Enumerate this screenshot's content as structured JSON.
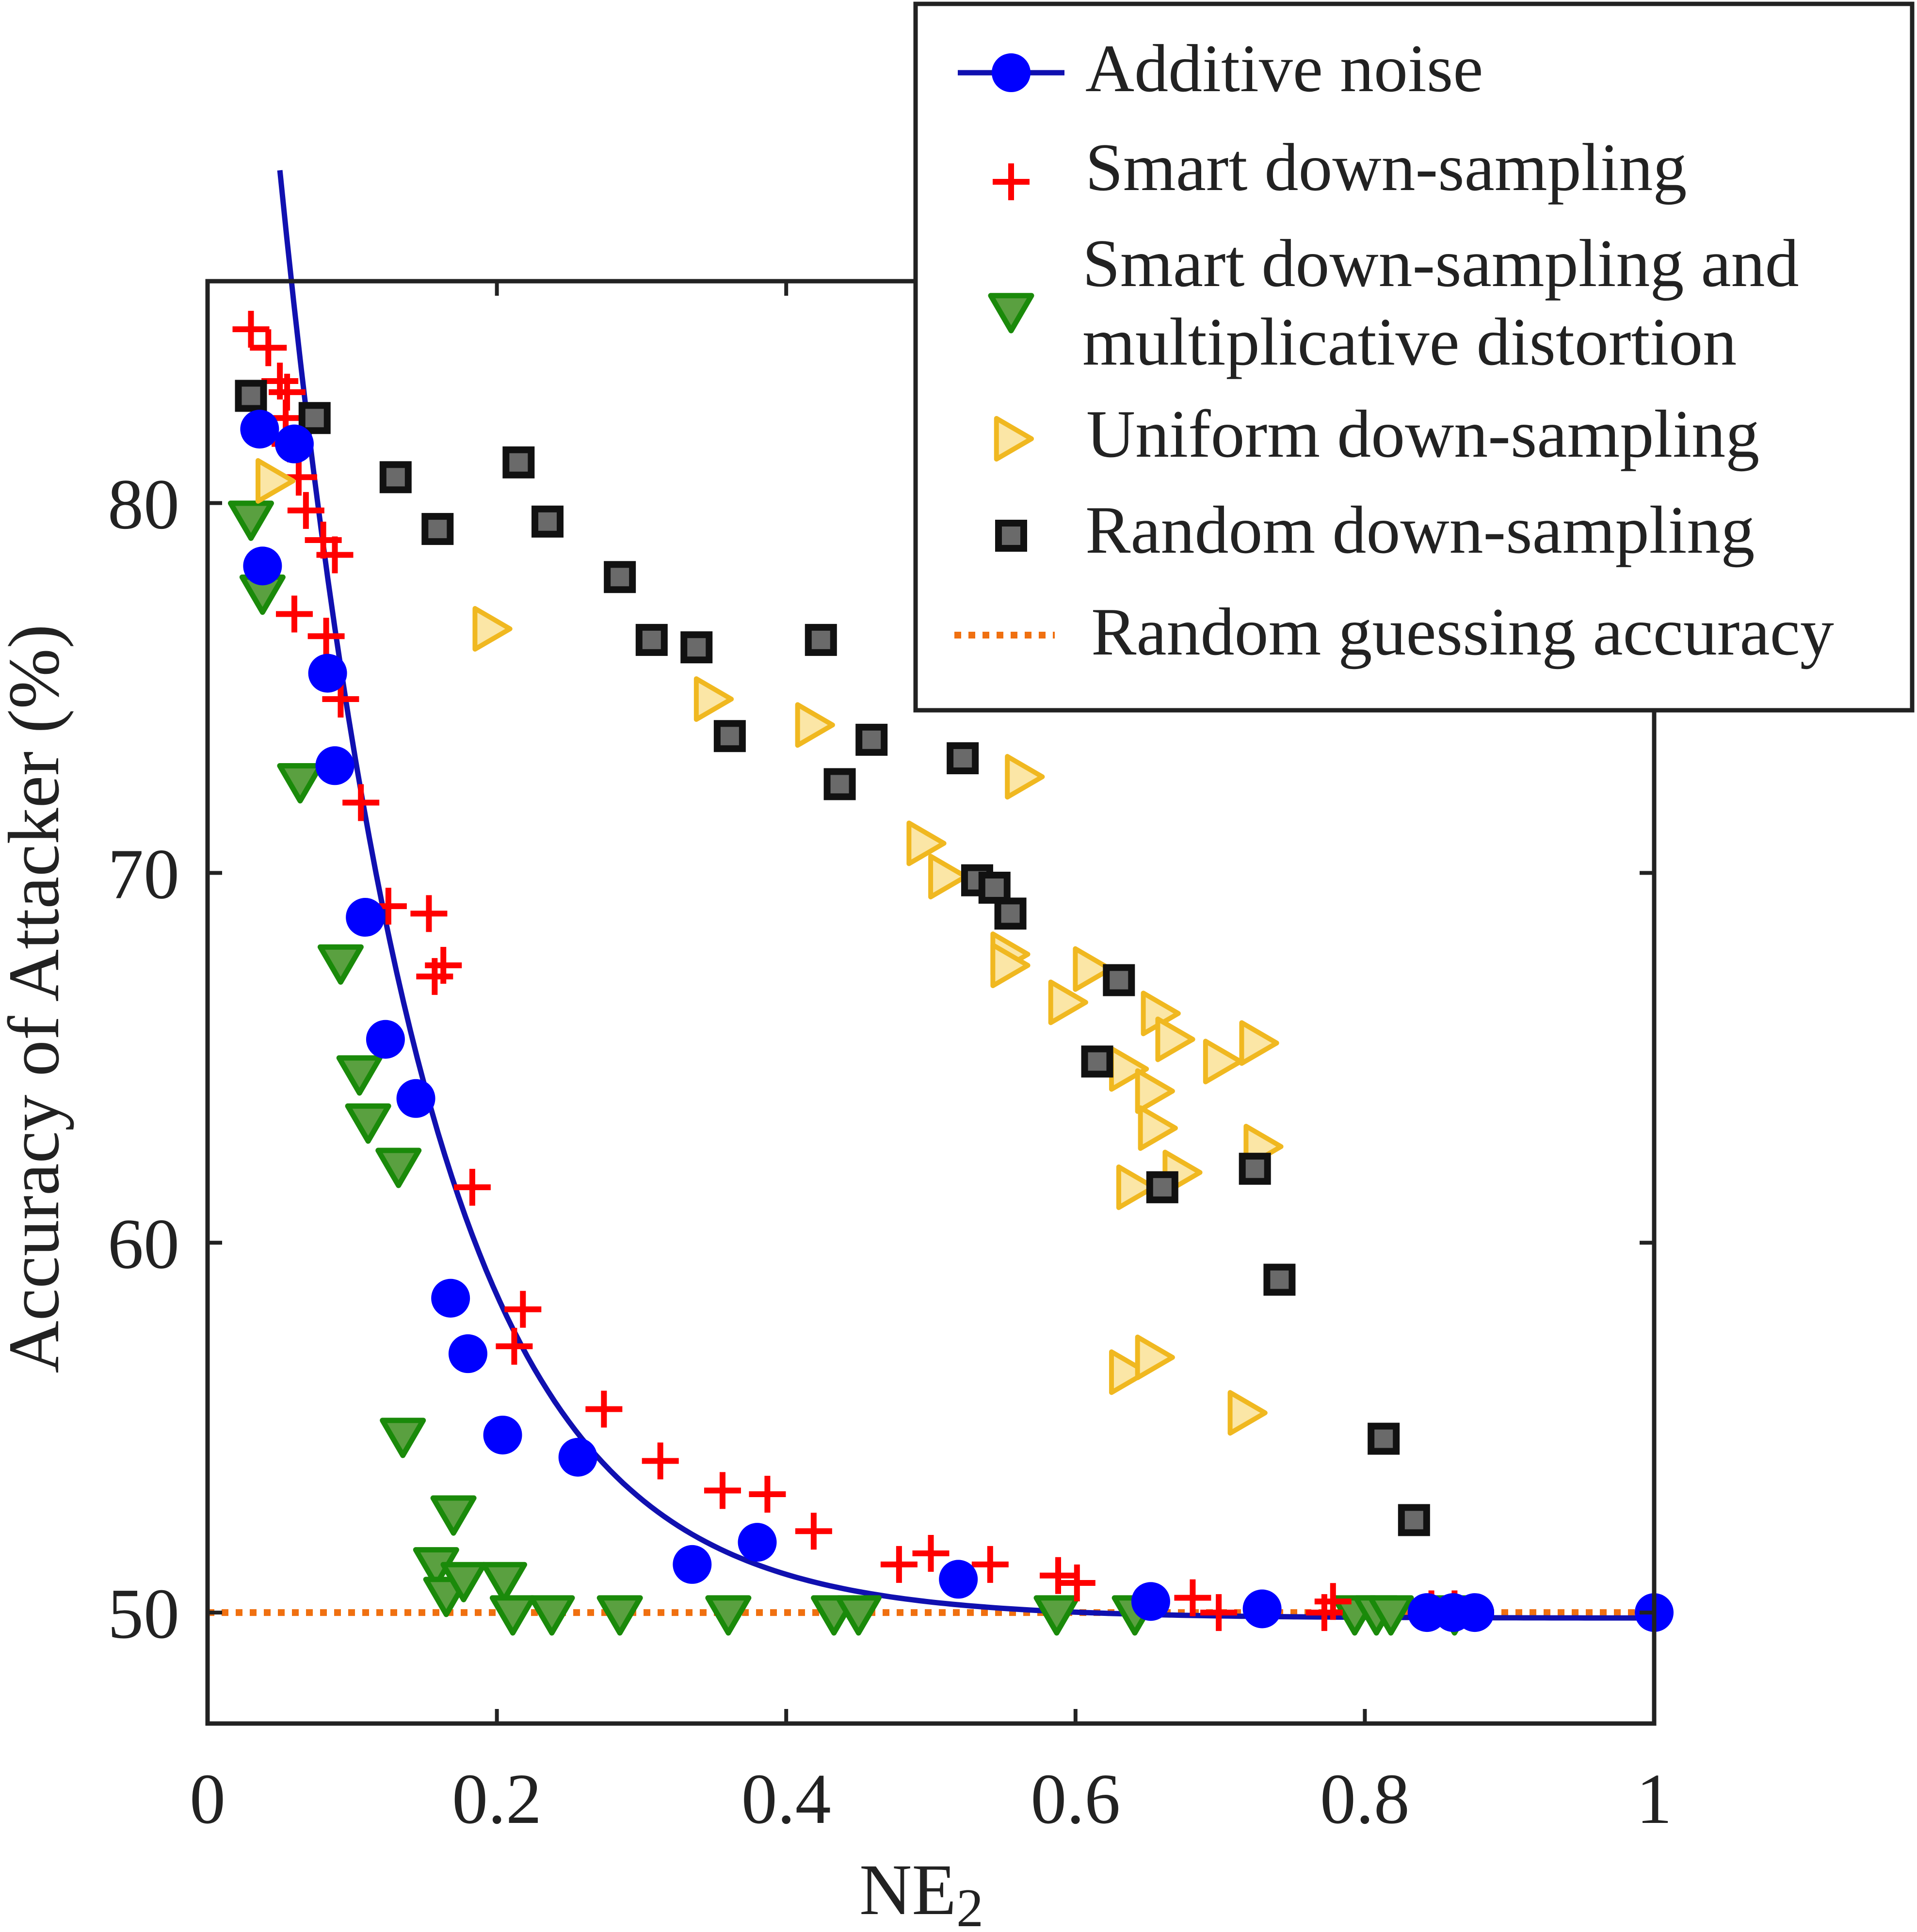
{
  "chart_data": {
    "type": "scatter",
    "xlabel": "NE",
    "xlabel_subscript": "2",
    "ylabel": "Accuracy of Attacker (%)",
    "xlim": [
      0,
      1
    ],
    "ylim": [
      46.999,
      86
    ],
    "xticks": [
      0,
      0.2,
      0.4,
      0.6,
      0.8,
      1
    ],
    "xtick_labels": [
      "0",
      "0.2",
      "0.4",
      "0.6",
      "0.8",
      "1"
    ],
    "yticks": [
      50,
      60,
      70,
      80
    ],
    "ytick_labels": [
      "50",
      "60",
      "70",
      "80"
    ],
    "legend_position": "top-right",
    "colors": {
      "additive": "#0000ff",
      "fit_line": "#1010b0",
      "smart": "#ff0000",
      "smart_mult": "#1a8a0a",
      "smart_mult_fill": "#5aa040",
      "uniform": "#f0b820",
      "random": "#111111",
      "random_inner": "#6a6a6a",
      "guess": "#f07010"
    },
    "series": [
      {
        "name": "Additive noise",
        "kind": "marker-line",
        "marker": "circle",
        "points": [
          [
            0.036,
            82.0
          ],
          [
            0.038,
            78.3
          ],
          [
            0.06,
            81.6
          ],
          [
            0.083,
            75.4
          ],
          [
            0.088,
            72.9
          ],
          [
            0.109,
            68.8
          ],
          [
            0.123,
            65.5
          ],
          [
            0.144,
            63.9
          ],
          [
            0.168,
            58.5
          ],
          [
            0.18,
            57.0
          ],
          [
            0.204,
            54.8
          ],
          [
            0.256,
            54.2
          ],
          [
            0.335,
            51.3
          ],
          [
            0.38,
            51.9
          ],
          [
            0.519,
            50.9
          ],
          [
            0.652,
            50.3
          ],
          [
            0.729,
            50.1
          ],
          [
            0.843,
            50.0
          ],
          [
            0.861,
            50.0
          ],
          [
            0.876,
            50.0
          ],
          [
            1.0,
            50.0
          ]
        ]
      },
      {
        "name": "Smart down-sampling",
        "kind": "scatter",
        "marker": "plus",
        "points": [
          [
            0.03,
            84.7
          ],
          [
            0.042,
            84.2
          ],
          [
            0.05,
            83.3
          ],
          [
            0.055,
            83.0
          ],
          [
            0.054,
            82.3
          ],
          [
            0.057,
            81.6
          ],
          [
            0.063,
            80.7
          ],
          [
            0.068,
            79.8
          ],
          [
            0.08,
            79.0
          ],
          [
            0.088,
            78.6
          ],
          [
            0.06,
            77.0
          ],
          [
            0.082,
            76.4
          ],
          [
            0.092,
            74.7
          ],
          [
            0.106,
            71.9
          ],
          [
            0.125,
            69.1
          ],
          [
            0.153,
            68.9
          ],
          [
            0.163,
            67.5
          ],
          [
            0.157,
            67.2
          ],
          [
            0.183,
            61.5
          ],
          [
            0.218,
            58.2
          ],
          [
            0.212,
            57.2
          ],
          [
            0.274,
            55.5
          ],
          [
            0.313,
            54.1
          ],
          [
            0.356,
            53.3
          ],
          [
            0.387,
            53.2
          ],
          [
            0.419,
            52.2
          ],
          [
            0.478,
            51.3
          ],
          [
            0.5,
            51.6
          ],
          [
            0.541,
            51.3
          ],
          [
            0.588,
            51.0
          ],
          [
            0.601,
            50.8
          ],
          [
            0.681,
            50.4
          ],
          [
            0.699,
            50.0
          ],
          [
            0.772,
            50.0
          ],
          [
            0.778,
            50.3
          ],
          [
            0.846,
            50.1
          ],
          [
            0.862,
            50.1
          ]
        ]
      },
      {
        "name": "Smart down-sampling and multiplicative distortion",
        "kind": "scatter",
        "marker": "triangle-down",
        "points": [
          [
            0.03,
            79.6
          ],
          [
            0.038,
            77.6
          ],
          [
            0.064,
            72.5
          ],
          [
            0.092,
            67.6
          ],
          [
            0.105,
            64.6
          ],
          [
            0.111,
            63.3
          ],
          [
            0.132,
            62.1
          ],
          [
            0.135,
            54.8
          ],
          [
            0.158,
            51.3
          ],
          [
            0.17,
            52.7
          ],
          [
            0.165,
            50.5
          ],
          [
            0.177,
            50.9
          ],
          [
            0.205,
            50.9
          ],
          [
            0.211,
            50.0
          ],
          [
            0.238,
            50.0
          ],
          [
            0.285,
            50.0
          ],
          [
            0.36,
            50.0
          ],
          [
            0.433,
            50.0
          ],
          [
            0.45,
            50.0
          ],
          [
            0.587,
            50.0
          ],
          [
            0.641,
            50.0
          ],
          [
            0.793,
            50.0
          ],
          [
            0.808,
            50.0
          ],
          [
            0.818,
            50.0
          ],
          [
            0.862,
            50.0
          ]
        ]
      },
      {
        "name": "Uniform down-sampling",
        "kind": "scatter",
        "marker": "triangle-right",
        "points": [
          [
            0.045,
            80.6
          ],
          [
            0.195,
            76.6
          ],
          [
            0.348,
            74.7
          ],
          [
            0.418,
            74.0
          ],
          [
            0.563,
            72.6
          ],
          [
            0.495,
            70.8
          ],
          [
            0.51,
            69.9
          ],
          [
            0.553,
            67.8
          ],
          [
            0.553,
            67.5
          ],
          [
            0.593,
            66.5
          ],
          [
            0.61,
            67.4
          ],
          [
            0.657,
            66.2
          ],
          [
            0.667,
            65.5
          ],
          [
            0.7,
            64.9
          ],
          [
            0.725,
            65.4
          ],
          [
            0.635,
            64.7
          ],
          [
            0.653,
            64.1
          ],
          [
            0.655,
            63.1
          ],
          [
            0.728,
            62.6
          ],
          [
            0.672,
            61.9
          ],
          [
            0.64,
            61.5
          ],
          [
            0.635,
            56.5
          ],
          [
            0.653,
            56.9
          ],
          [
            0.717,
            55.4
          ]
        ]
      },
      {
        "name": "Random down-sampling",
        "kind": "scatter",
        "marker": "square",
        "points": [
          [
            0.03,
            82.9
          ],
          [
            0.074,
            82.3
          ],
          [
            0.13,
            80.7
          ],
          [
            0.159,
            79.3
          ],
          [
            0.215,
            81.1
          ],
          [
            0.235,
            79.5
          ],
          [
            0.285,
            78.0
          ],
          [
            0.307,
            76.3
          ],
          [
            0.338,
            76.1
          ],
          [
            0.361,
            73.7
          ],
          [
            0.424,
            76.3
          ],
          [
            0.437,
            72.4
          ],
          [
            0.459,
            73.6
          ],
          [
            0.522,
            73.1
          ],
          [
            0.532,
            69.8
          ],
          [
            0.544,
            69.6
          ],
          [
            0.555,
            68.9
          ],
          [
            0.63,
            67.1
          ],
          [
            0.615,
            64.9
          ],
          [
            0.66,
            61.5
          ],
          [
            0.724,
            62.0
          ],
          [
            0.741,
            59.0
          ],
          [
            0.813,
            54.7
          ],
          [
            0.834,
            52.5
          ]
        ]
      },
      {
        "name": "Random guessing accuracy",
        "kind": "dotted-line",
        "y": 50
      }
    ],
    "fit_curve": {
      "equation": "y = 49.85 + 39.15 * exp(-(x - 0.05) / 0.1)",
      "x_range": [
        0.05,
        1.0
      ]
    }
  },
  "legend": {
    "items": [
      [
        "Additive noise"
      ],
      [
        "Smart down-sampling"
      ],
      [
        "Smart down-sampling and",
        "multiplicative distortion"
      ],
      [
        "Uniform down-sampling"
      ],
      [
        "Random down-sampling"
      ],
      [
        "Random guessing accuracy"
      ]
    ]
  }
}
